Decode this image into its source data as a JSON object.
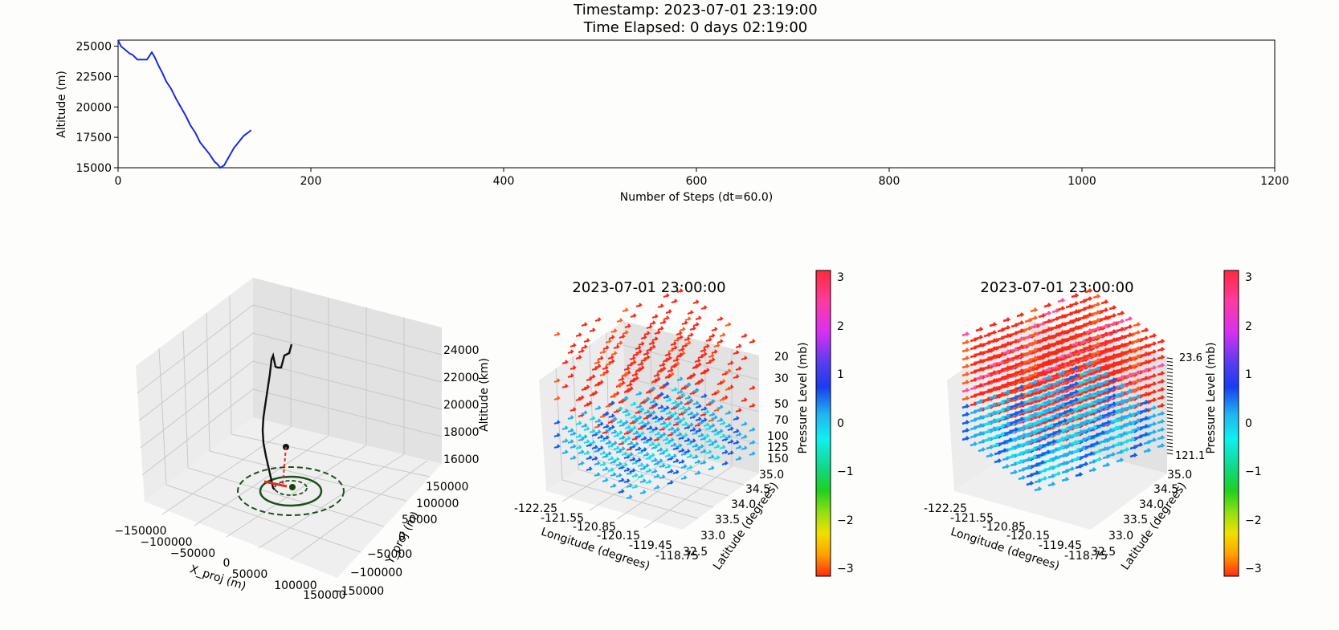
{
  "header": {
    "timestamp": "Timestamp: 2023-07-01 23:19:00",
    "elapsed": "Time Elapsed: 0 days 02:19:00"
  },
  "chart_data": [
    {
      "type": "line",
      "xlabel": "Number of Steps (dt=60.0)",
      "ylabel": "Altitude (m)",
      "xlim": [
        0,
        1200
      ],
      "ylim": [
        15000,
        25500
      ],
      "xticks": [
        "0",
        "200",
        "400",
        "600",
        "800",
        "1000",
        "1200"
      ],
      "yticks": [
        "15000",
        "17500",
        "20000",
        "22500",
        "25000"
      ],
      "color": "#1a2bdc",
      "x": [
        0,
        3,
        6,
        9,
        12,
        15,
        20,
        25,
        30,
        35,
        38,
        42,
        46,
        50,
        55,
        60,
        65,
        70,
        75,
        80,
        85,
        90,
        95,
        100,
        103,
        106,
        110,
        115,
        120,
        125,
        130,
        135,
        138
      ],
      "y": [
        25500,
        25000,
        24800,
        24600,
        24400,
        24300,
        23900,
        23900,
        23900,
        24500,
        24100,
        23400,
        22800,
        22100,
        21500,
        20700,
        20000,
        19300,
        18500,
        17900,
        17100,
        16600,
        16100,
        15500,
        15300,
        15000,
        15200,
        15900,
        16600,
        17100,
        17600,
        17900,
        18100
      ]
    },
    {
      "type": "line3d",
      "xlabel": "X_proj (m)",
      "ylabel": "Y_proj (m)",
      "zlabel": "Altitude (km)",
      "xticks": [
        "−150000",
        "−100000",
        "−50000",
        "0",
        "50000",
        "100000",
        "150000"
      ],
      "yticks": [
        "−150000",
        "−100000",
        "−50000",
        "0",
        "50000",
        "100000",
        "150000"
      ],
      "zticks": [
        "16000",
        "18000",
        "20000",
        "22000",
        "24000"
      ]
    },
    {
      "type": "quiver3d",
      "title": "2023-07-01 23:00:00",
      "xlabel": "Longitude (degrees)",
      "ylabel": "Latitude (degrees)",
      "zlabel": "Pressure Level (mb)",
      "xticks": [
        "-122.25",
        "-121.55",
        "-120.85",
        "-120.15",
        "-119.45",
        "-118.75"
      ],
      "yticks": [
        "32.5",
        "33.0",
        "33.5",
        "34.0",
        "34.5",
        "35.0"
      ],
      "zticks": [
        "20",
        "30",
        "50",
        "70",
        "100",
        "125",
        "150"
      ],
      "colorbar_ticks": [
        "3",
        "2",
        "1",
        "0",
        "−1",
        "−2",
        "−3"
      ],
      "colorbar_label": "Pressure Level (mb)"
    },
    {
      "type": "quiver3d",
      "title": "2023-07-01 23:00:00",
      "xlabel": "Longitude (degrees)",
      "ylabel": "Latitude (degrees)",
      "zlabel": "Pressure Level (mb)",
      "xticks": [
        "-122.25",
        "-121.55",
        "-120.85",
        "-120.15",
        "-119.45",
        "-118.75"
      ],
      "yticks": [
        "32.5",
        "33.0",
        "33.5",
        "34.0",
        "34.5",
        "35.0"
      ],
      "zticks": [
        "23.6",
        "121.1"
      ],
      "colorbar_ticks": [
        "3",
        "2",
        "1",
        "0",
        "−1",
        "−2",
        "−3"
      ],
      "colorbar_label": "Pressure Level (mb)"
    }
  ]
}
